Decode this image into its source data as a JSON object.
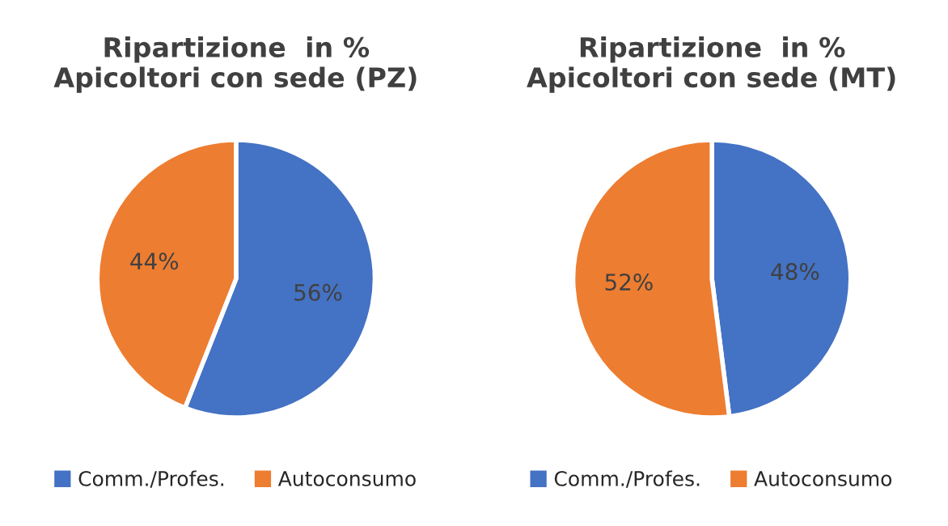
{
  "chart_data": [
    {
      "type": "pie",
      "title": "Ripartizione  in %\nApicoltori con sede (PZ)",
      "categories": [
        "Comm./Profes.",
        "Autoconsumo"
      ],
      "values": [
        56,
        44
      ],
      "colors": [
        "#4472c4",
        "#ed7d31"
      ],
      "value_labels": [
        "56%",
        "44%"
      ],
      "legend": "bottom"
    },
    {
      "type": "pie",
      "title": "Ripartizione  in %\nApicoltori con sede (MT)",
      "categories": [
        "Comm./Profes.",
        "Autoconsumo"
      ],
      "values": [
        48,
        52
      ],
      "colors": [
        "#4472c4",
        "#ed7d31"
      ],
      "value_labels": [
        "48%",
        "52%"
      ],
      "legend": "bottom"
    }
  ]
}
